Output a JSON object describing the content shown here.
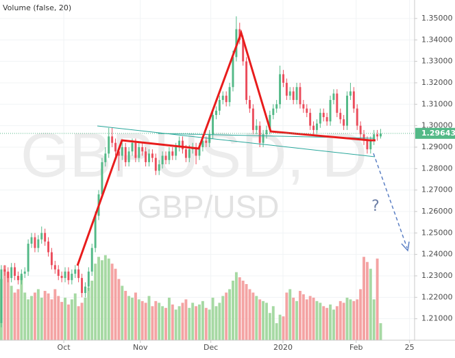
{
  "chart_data": {
    "type": "candlestick",
    "volume_title": "Volume (false, 20)",
    "watermark": "GBPUSD, D",
    "watermark_sub": "GBP/USD",
    "annotation": "?",
    "last_price": 1.29643,
    "up_color": "#53b987",
    "down_color": "#eb4d5c",
    "volume_up_color": "#a6d9a3",
    "volume_down_color": "#f4a3a3",
    "grid": true,
    "ylim": [
      1.2,
      1.3586
    ],
    "yticks": [
      {
        "value": 1.21,
        "label": "1.21000"
      },
      {
        "value": 1.22,
        "label": "1.22000"
      },
      {
        "value": 1.23,
        "label": "1.23000"
      },
      {
        "value": 1.24,
        "label": "1.24000"
      },
      {
        "value": 1.25,
        "label": "1.25000"
      },
      {
        "value": 1.26,
        "label": "1.26000"
      },
      {
        "value": 1.27,
        "label": "1.27000"
      },
      {
        "value": 1.28,
        "label": "1.28000"
      },
      {
        "value": 1.29,
        "label": "1.29000"
      },
      {
        "value": 1.3,
        "label": "1.30000"
      },
      {
        "value": 1.31,
        "label": "1.31000"
      },
      {
        "value": 1.32,
        "label": "1.32000"
      },
      {
        "value": 1.33,
        "label": "1.33000"
      },
      {
        "value": 1.34,
        "label": "1.34000"
      },
      {
        "value": 1.35,
        "label": "1.35000"
      }
    ],
    "xlim": [
      -0.4,
      123.1
    ],
    "xticks": [
      {
        "value": 18.6,
        "label": "Oct"
      },
      {
        "value": 41.4,
        "label": "Nov"
      },
      {
        "value": 62.4,
        "label": "Dec"
      },
      {
        "value": 83.9,
        "label": "2020"
      },
      {
        "value": 105.7,
        "label": "Feb"
      },
      {
        "value": 121.6,
        "label": "25"
      }
    ],
    "volume_lim": [
      0,
      400
    ],
    "open": [
      1.208,
      1.233,
      1.232,
      1.229,
      1.234,
      1.23,
      1.228,
      1.231,
      1.232,
      1.245,
      1.248,
      1.243,
      1.247,
      1.25,
      1.246,
      1.241,
      1.235,
      1.233,
      1.23,
      1.229,
      1.232,
      1.228,
      1.231,
      1.233,
      1.229,
      1.222,
      1.225,
      1.232,
      1.243,
      1.258,
      1.268,
      1.283,
      1.287,
      1.295,
      1.292,
      1.288,
      1.286,
      1.29,
      1.283,
      1.288,
      1.292,
      1.285,
      1.29,
      1.288,
      1.283,
      1.287,
      1.285,
      1.279,
      1.282,
      1.286,
      1.284,
      1.288,
      1.286,
      1.29,
      1.293,
      1.289,
      1.285,
      1.289,
      1.29,
      1.286,
      1.29,
      1.293,
      1.292,
      1.296,
      1.305,
      1.307,
      1.312,
      1.314,
      1.311,
      1.318,
      1.332,
      1.345,
      1.34,
      1.33,
      1.312,
      1.308,
      1.298,
      1.3,
      1.292,
      1.296,
      1.298,
      1.305,
      1.308,
      1.31,
      1.324,
      1.32,
      1.314,
      1.316,
      1.312,
      1.318,
      1.31,
      1.308,
      1.306,
      1.3,
      1.298,
      1.301,
      1.306,
      1.304,
      1.302,
      1.312,
      1.315,
      1.306,
      1.303,
      1.3,
      1.314,
      1.316,
      1.308,
      1.3,
      1.296,
      1.293,
      1.289,
      1.293,
      1.296,
      1.295
    ],
    "high": [
      1.235,
      1.235,
      1.234,
      1.236,
      1.236,
      1.232,
      1.233,
      1.234,
      1.247,
      1.25,
      1.25,
      1.249,
      1.253,
      1.252,
      1.248,
      1.243,
      1.237,
      1.235,
      1.232,
      1.234,
      1.234,
      1.233,
      1.235,
      1.235,
      1.231,
      1.227,
      1.234,
      1.245,
      1.26,
      1.27,
      1.285,
      1.29,
      1.299,
      1.299,
      1.294,
      1.29,
      1.292,
      1.292,
      1.29,
      1.294,
      1.294,
      1.292,
      1.292,
      1.29,
      1.289,
      1.289,
      1.287,
      1.284,
      1.288,
      1.288,
      1.29,
      1.29,
      1.292,
      1.295,
      1.295,
      1.291,
      1.291,
      1.292,
      1.292,
      1.292,
      1.295,
      1.295,
      1.298,
      1.307,
      1.309,
      1.314,
      1.316,
      1.316,
      1.32,
      1.335,
      1.351,
      1.348,
      1.342,
      1.332,
      1.314,
      1.31,
      1.303,
      1.302,
      1.298,
      1.3,
      1.307,
      1.31,
      1.312,
      1.328,
      1.326,
      1.322,
      1.318,
      1.318,
      1.32,
      1.32,
      1.312,
      1.31,
      1.308,
      1.302,
      1.303,
      1.308,
      1.308,
      1.306,
      1.314,
      1.317,
      1.317,
      1.308,
      1.305,
      1.316,
      1.32,
      1.318,
      1.31,
      1.302,
      1.298,
      1.295,
      1.295,
      1.298,
      1.298,
      1.2985
    ],
    "low": [
      1.206,
      1.23,
      1.227,
      1.227,
      1.228,
      1.226,
      1.226,
      1.229,
      1.23,
      1.243,
      1.241,
      1.241,
      1.245,
      1.244,
      1.239,
      1.233,
      1.231,
      1.228,
      1.227,
      1.227,
      1.226,
      1.226,
      1.229,
      1.227,
      1.22,
      1.22,
      1.223,
      1.23,
      1.241,
      1.256,
      1.266,
      1.281,
      1.285,
      1.29,
      1.286,
      1.279,
      1.284,
      1.281,
      1.281,
      1.286,
      1.283,
      1.283,
      1.286,
      1.281,
      1.281,
      1.283,
      1.277,
      1.277,
      1.28,
      1.282,
      1.282,
      1.284,
      1.284,
      1.288,
      1.287,
      1.283,
      1.283,
      1.287,
      1.282,
      1.284,
      1.288,
      1.29,
      1.29,
      1.294,
      1.303,
      1.305,
      1.31,
      1.309,
      1.309,
      1.316,
      1.33,
      1.338,
      1.328,
      1.31,
      1.306,
      1.296,
      1.296,
      1.29,
      1.29,
      1.294,
      1.296,
      1.303,
      1.306,
      1.308,
      1.318,
      1.312,
      1.312,
      1.31,
      1.31,
      1.308,
      1.306,
      1.304,
      1.298,
      1.296,
      1.296,
      1.299,
      1.302,
      1.3,
      1.3,
      1.31,
      1.304,
      1.301,
      1.298,
      1.298,
      1.312,
      1.306,
      1.298,
      1.294,
      1.291,
      1.287,
      1.287,
      1.291,
      1.293,
      1.294
    ],
    "close": [
      1.233,
      1.232,
      1.229,
      1.234,
      1.23,
      1.228,
      1.231,
      1.232,
      1.245,
      1.248,
      1.243,
      1.247,
      1.25,
      1.246,
      1.241,
      1.235,
      1.233,
      1.23,
      1.229,
      1.232,
      1.228,
      1.231,
      1.233,
      1.229,
      1.222,
      1.225,
      1.232,
      1.243,
      1.258,
      1.268,
      1.283,
      1.287,
      1.295,
      1.292,
      1.288,
      1.286,
      1.29,
      1.283,
      1.288,
      1.292,
      1.285,
      1.29,
      1.288,
      1.283,
      1.287,
      1.285,
      1.279,
      1.282,
      1.286,
      1.284,
      1.288,
      1.286,
      1.29,
      1.293,
      1.289,
      1.285,
      1.289,
      1.29,
      1.286,
      1.29,
      1.293,
      1.292,
      1.296,
      1.305,
      1.307,
      1.312,
      1.314,
      1.311,
      1.318,
      1.332,
      1.345,
      1.34,
      1.33,
      1.312,
      1.308,
      1.298,
      1.3,
      1.292,
      1.296,
      1.298,
      1.305,
      1.308,
      1.31,
      1.324,
      1.32,
      1.314,
      1.316,
      1.312,
      1.318,
      1.31,
      1.308,
      1.306,
      1.3,
      1.298,
      1.301,
      1.306,
      1.304,
      1.302,
      1.312,
      1.315,
      1.306,
      1.303,
      1.3,
      1.314,
      1.316,
      1.308,
      1.3,
      1.296,
      1.293,
      1.289,
      1.293,
      1.296,
      1.295,
      1.2964
    ],
    "volume": [
      72,
      88,
      80,
      64,
      56,
      60,
      76,
      56,
      48,
      52,
      56,
      60,
      50,
      58,
      55,
      48,
      60,
      52,
      45,
      50,
      42,
      48,
      55,
      40,
      44,
      50,
      62,
      70,
      90,
      98,
      94,
      100,
      96,
      90,
      84,
      72,
      64,
      58,
      52,
      50,
      56,
      48,
      46,
      44,
      52,
      40,
      46,
      44,
      40,
      38,
      50,
      42,
      36,
      40,
      44,
      48,
      38,
      44,
      40,
      42,
      46,
      38,
      36,
      50,
      40,
      44,
      52,
      56,
      60,
      70,
      80,
      74,
      70,
      66,
      60,
      56,
      52,
      48,
      46,
      44,
      32,
      40,
      20,
      30,
      28,
      56,
      60,
      50,
      46,
      58,
      54,
      48,
      52,
      50,
      46,
      44,
      40,
      38,
      42,
      36,
      40,
      46,
      44,
      50,
      48,
      46,
      48,
      60,
      98,
      92,
      84,
      48,
      96,
      20
    ]
  }
}
